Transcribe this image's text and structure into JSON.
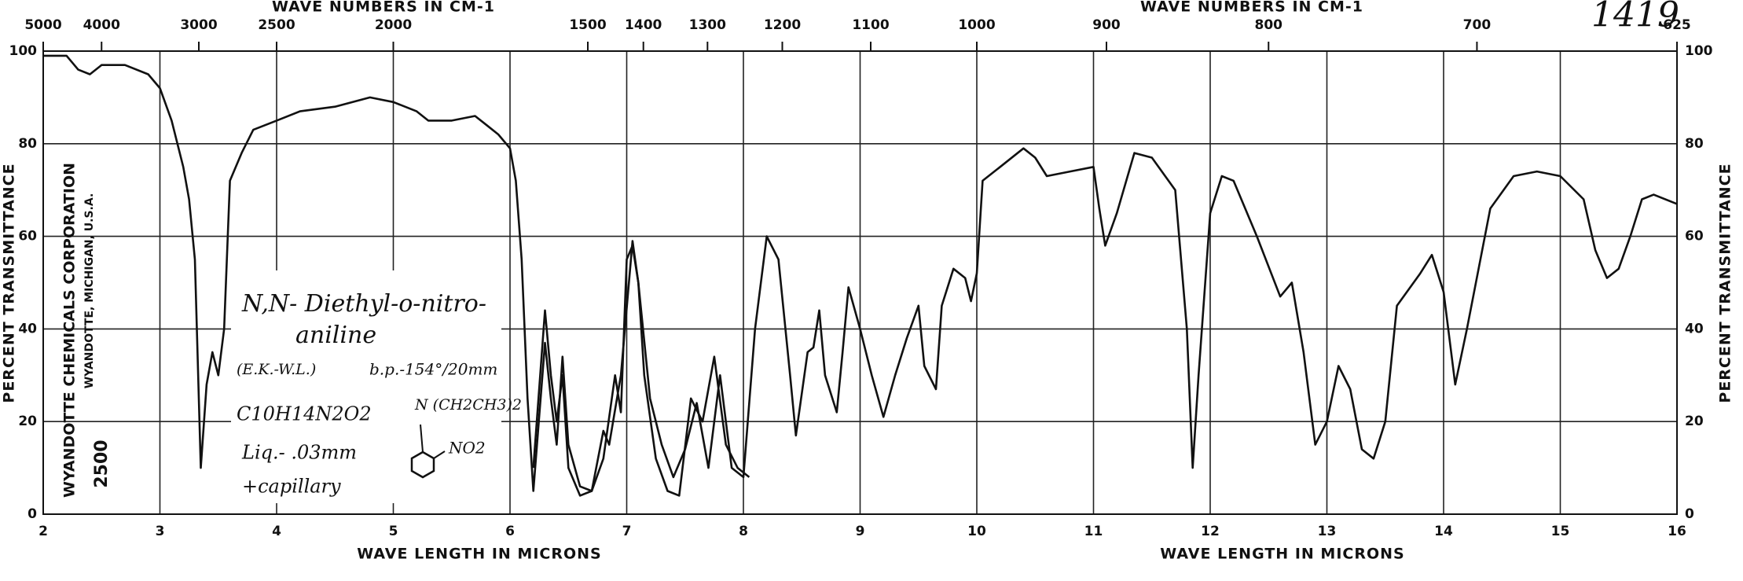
{
  "chart_data": {
    "type": "line",
    "x_label": "WAVE LENGTH IN MICRONS",
    "x2_label": "WAVE NUMBERS IN CM-1",
    "y_label": "PERCENT TRANSMITTANCE",
    "xlim": [
      2,
      16
    ],
    "xticks": [
      2,
      3,
      4,
      5,
      6,
      7,
      8,
      9,
      10,
      11,
      12,
      13,
      14,
      15,
      16
    ],
    "x2ticks": [
      5000,
      4000,
      3000,
      2500,
      2000,
      1500,
      1400,
      1300,
      1200,
      1100,
      1000,
      900,
      800,
      700,
      625
    ],
    "ylim": [
      0,
      100
    ],
    "yticks": [
      0,
      20,
      40,
      60,
      80,
      100
    ],
    "grid": true,
    "series": [
      {
        "color": "#111111",
        "x": [
          2.0,
          2.2,
          2.3,
          2.4,
          2.5,
          2.7,
          2.9,
          3.0,
          3.1,
          3.2,
          3.25,
          3.3,
          3.35,
          3.4,
          3.45,
          3.5,
          3.55,
          3.6,
          3.7,
          3.8,
          4.0,
          4.2,
          4.5,
          4.8,
          5.0,
          5.2,
          5.3,
          5.5,
          5.7,
          5.8,
          5.9,
          6.0,
          6.05,
          6.1,
          6.15,
          6.2,
          6.3,
          6.35,
          6.4,
          6.45,
          6.5,
          6.6,
          6.7,
          6.8,
          6.9,
          6.95,
          7.0,
          7.05,
          7.1,
          7.2,
          7.3,
          7.4,
          7.5,
          7.6,
          7.7,
          7.8,
          7.9,
          8.0,
          8.1,
          8.2,
          8.3,
          8.4,
          8.45,
          8.55,
          8.6,
          8.65,
          8.7,
          8.8,
          8.85,
          8.9,
          9.0,
          9.1,
          9.2,
          9.3,
          9.4,
          9.5,
          9.55,
          9.65,
          9.7,
          9.8,
          9.9,
          9.95,
          10.0,
          10.05,
          10.2,
          10.4,
          10.5,
          10.6,
          10.8,
          11.0,
          11.05,
          11.1,
          11.2,
          11.35,
          11.5,
          11.7,
          11.8,
          11.85,
          11.9,
          12.0,
          12.1,
          12.2,
          12.4,
          12.6,
          12.7,
          12.8,
          12.9,
          13.0,
          13.1,
          13.2,
          13.3,
          13.4,
          13.5,
          13.6,
          13.8,
          13.9,
          14.0,
          14.1,
          14.2,
          14.4,
          14.6,
          14.8,
          15.0,
          15.2,
          15.3,
          15.4,
          15.5,
          15.6,
          15.7,
          15.8,
          16.0
        ],
        "values": [
          99,
          99,
          96,
          95,
          97,
          97,
          95,
          92,
          85,
          75,
          68,
          55,
          10,
          28,
          35,
          30,
          40,
          72,
          78,
          83,
          85,
          87,
          88,
          90,
          89,
          87,
          85,
          85,
          86,
          84,
          82,
          79,
          72,
          55,
          25,
          5,
          37,
          25,
          15,
          34,
          15,
          6,
          5,
          12,
          30,
          22,
          55,
          58,
          50,
          25,
          15,
          8,
          14,
          24,
          10,
          30,
          10,
          8,
          40,
          60,
          55,
          30,
          17,
          35,
          36,
          44,
          30,
          22,
          35,
          49,
          40,
          30,
          21,
          30,
          38,
          45,
          32,
          27,
          45,
          53,
          51,
          46,
          52,
          72,
          75,
          79,
          77,
          73,
          74,
          75,
          66,
          58,
          65,
          78,
          77,
          70,
          40,
          10,
          30,
          65,
          73,
          72,
          60,
          47,
          50,
          35,
          15,
          20,
          32,
          27,
          14,
          12,
          20,
          45,
          52,
          56,
          48,
          28,
          40,
          66,
          73,
          74,
          73,
          68,
          57,
          51,
          53,
          60,
          68,
          69,
          67
        ]
      },
      {
        "color": "#111111",
        "x": [
          6.2,
          6.3,
          6.35,
          6.4,
          6.45,
          6.5,
          6.6,
          6.7,
          6.8,
          6.85,
          6.95,
          7.05,
          7.1,
          7.15,
          7.25,
          7.35,
          7.45,
          7.55,
          7.65,
          7.75,
          7.85,
          7.95,
          8.05
        ],
        "values": [
          10,
          44,
          30,
          20,
          30,
          10,
          4,
          5,
          18,
          15,
          30,
          59,
          50,
          30,
          12,
          5,
          4,
          25,
          20,
          34,
          15,
          10,
          8
        ]
      }
    ],
    "header_text": "1419",
    "company": "WYANDOTTE CHEMICALS CORPORATION",
    "company_place": "WYANDOTTE, MICHIGAN, U.S.A.",
    "chart_number": "2500",
    "annotations": [
      "N,N- Diethyl-o-nitro-",
      "aniline",
      "(E.K.-W.L.)",
      "b.p.-154°/20mm",
      "C10H14N2O2",
      "Liq.- .03mm",
      "+capillary",
      "N (CH2CH3)2",
      "NO2"
    ]
  }
}
